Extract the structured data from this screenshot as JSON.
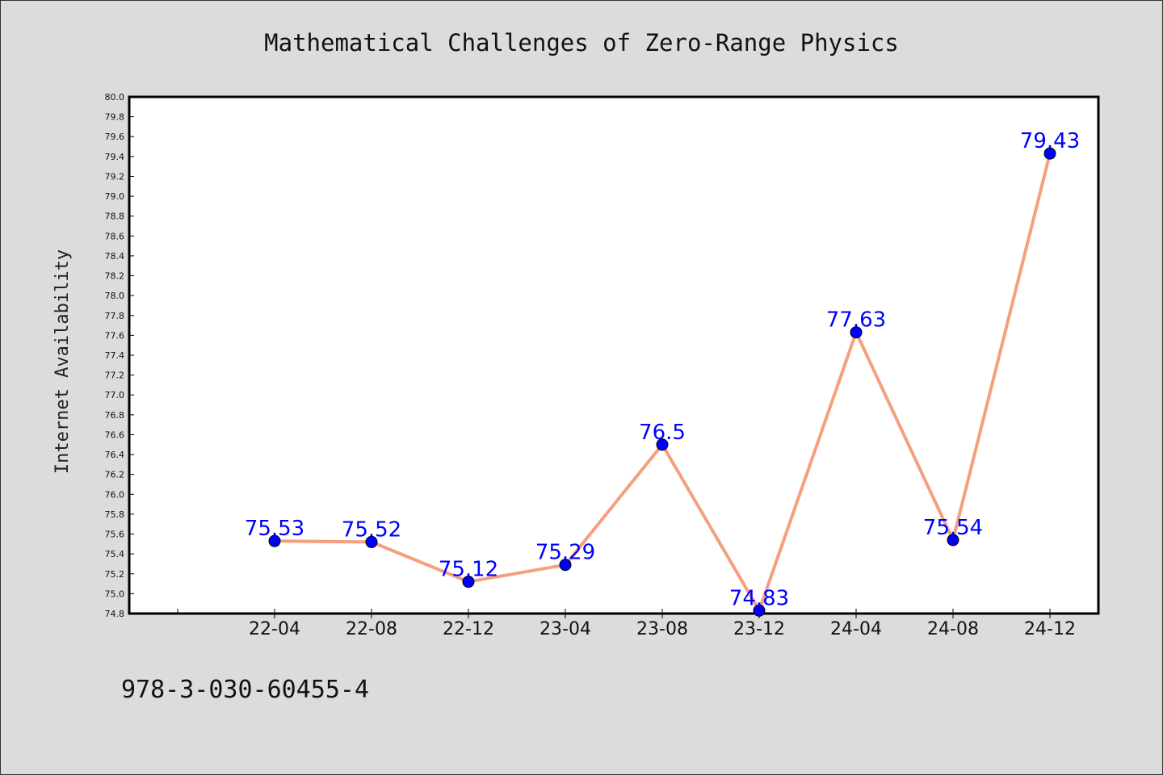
{
  "chart_data": {
    "type": "line",
    "title": "Mathematical Challenges of Zero-Range Physics",
    "xlabel": "",
    "ylabel": "Internet Availability",
    "categories": [
      "22-04",
      "22-08",
      "22-12",
      "23-04",
      "23-08",
      "23-12",
      "24-04",
      "24-08",
      "24-12"
    ],
    "series": [
      {
        "values": [
          75.53,
          75.52,
          75.12,
          75.29,
          76.5,
          74.83,
          77.63,
          75.54,
          79.43
        ]
      }
    ],
    "data_labels": [
      "75.53",
      "75.52",
      "75.12",
      "75.29",
      "76.5",
      "74.83",
      "77.63",
      "75.54",
      "79.43"
    ],
    "ylim": [
      74.8,
      80.0
    ],
    "yticks": [
      "74.8",
      "75.0",
      "75.2",
      "75.4",
      "75.6",
      "75.8",
      "76.0",
      "76.2",
      "76.4",
      "76.6",
      "76.8",
      "77.0",
      "77.2",
      "77.4",
      "77.6",
      "77.8",
      "78.0",
      "78.2",
      "78.4",
      "78.6",
      "78.8",
      "79.0",
      "79.2",
      "79.4",
      "79.6",
      "79.8",
      "80.0"
    ],
    "grid": false,
    "legend": "none",
    "colors": {
      "line": "#f4a07e",
      "marker": "#0000ff",
      "label": "#0000ff",
      "background": "#dcdcdc",
      "plot_bg": "#ffffff"
    }
  },
  "footer": {
    "isbn": "978-3-030-60455-4"
  }
}
